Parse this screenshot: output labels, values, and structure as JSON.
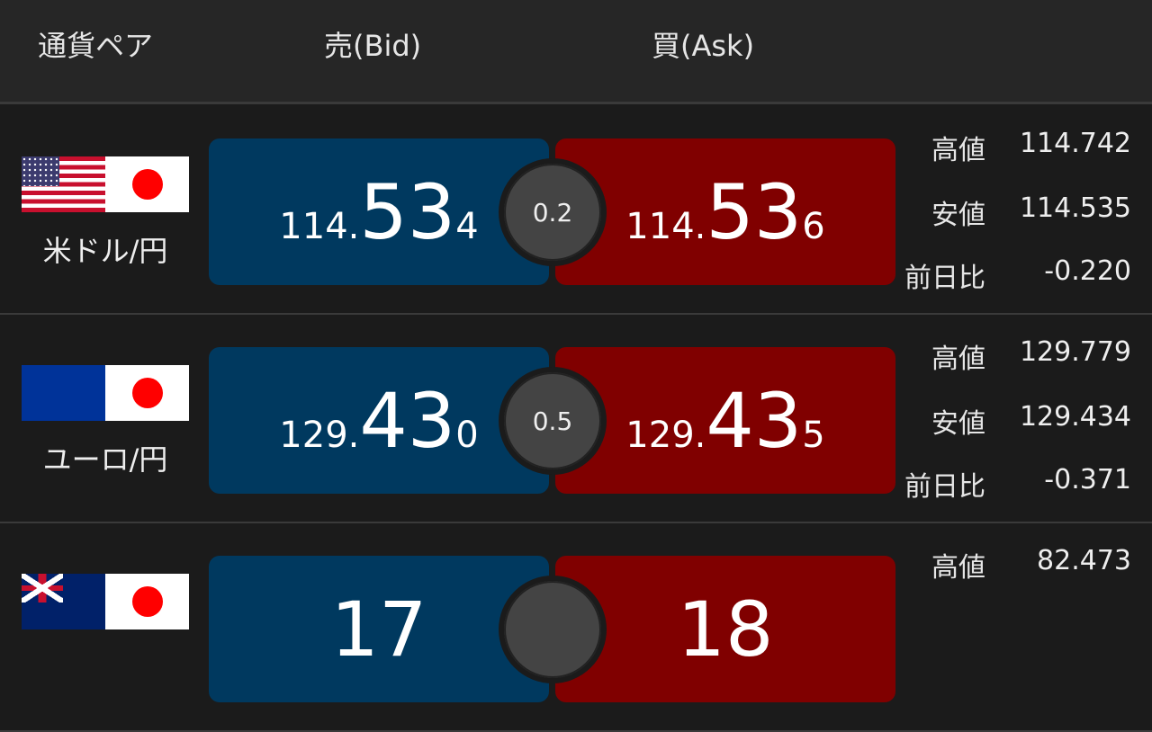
{
  "header": {
    "pair": "通貨ペア",
    "bid": "売(Bid)",
    "ask": "買(Ask)"
  },
  "labels": {
    "high": "高値",
    "low": "安値",
    "change": "前日比"
  },
  "colors": {
    "bid": "#00395f",
    "ask": "#800000",
    "spread": "#444444"
  },
  "rows": [
    {
      "name": "米ドル/円",
      "flag": "us-jp-flag",
      "bid": {
        "pre": "114.",
        "big": "53",
        "post": "4"
      },
      "ask": {
        "pre": "114.",
        "big": "53",
        "post": "6"
      },
      "spread": "0.2",
      "high": "114.742",
      "low": "114.535",
      "change": "-0.220"
    },
    {
      "name": "ユーロ/円",
      "flag": "eu-jp-flag",
      "bid": {
        "pre": "129.",
        "big": "43",
        "post": "0"
      },
      "ask": {
        "pre": "129.",
        "big": "43",
        "post": "5"
      },
      "spread": "0.5",
      "high": "129.779",
      "low": "129.434",
      "change": "-0.371"
    },
    {
      "name": "",
      "flag": "au-jp-flag",
      "bid": {
        "pre": "",
        "big": "17",
        "post": ""
      },
      "ask": {
        "pre": "",
        "big": "18",
        "post": ""
      },
      "spread": "",
      "high": "82.473",
      "low": "",
      "change": ""
    }
  ]
}
